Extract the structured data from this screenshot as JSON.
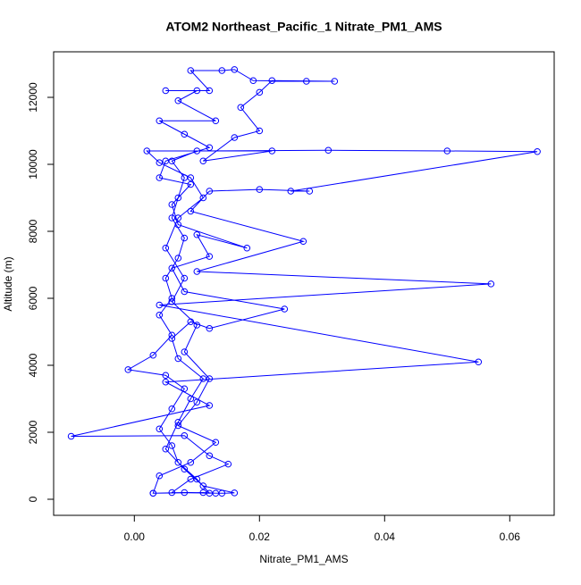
{
  "chart_data": {
    "type": "line",
    "title": "ATOM2 Northeast_Pacific_1 Nitrate_PM1_AMS",
    "x_label": "Nitrate_PM1_AMS",
    "y_label": "Altitude (m)",
    "color": "#0000ff",
    "markers": true,
    "xlim": [
      -0.0129,
      0.0671
    ],
    "ylim": [
      -480,
      13360
    ],
    "xticks": [
      {
        "value": 0,
        "label": "0.00"
      },
      {
        "value": 0.02,
        "label": "0.02"
      },
      {
        "value": 0.04,
        "label": "0.04"
      },
      {
        "value": 0.06,
        "label": "0.06"
      }
    ],
    "yticks": [
      0,
      2000,
      4000,
      6000,
      8000,
      10000,
      12000
    ],
    "x": [
      0.003,
      0.008,
      0.012,
      0.01,
      0.007,
      0.006,
      0.004,
      0.006,
      0.008,
      0.005,
      -0.001,
      0.003,
      0.006,
      0.004,
      0.006,
      0.005,
      0.007,
      0.008,
      0.006,
      0.007,
      0.008,
      0.006,
      0.01,
      0.031,
      0.05,
      0.0644,
      0.025,
      0.028,
      0.02,
      0.012,
      0.009,
      0.027,
      0.01,
      0.057,
      0.004,
      0.055,
      0.005,
      0.012,
      -0.0101,
      0.008,
      0.012,
      0.015,
      0.009,
      0.006,
      0.014,
      0.016,
      0.011,
      0.008,
      0.005,
      0.007,
      0.009,
      0.011,
      0.007,
      0.006,
      0.009,
      0.012,
      0.024,
      0.008,
      0.006,
      0.012,
      0.01,
      0.018,
      0.007,
      0.006,
      0.009,
      0.004,
      0.005,
      0.012,
      0.008,
      0.004,
      0.013,
      0.007,
      0.01,
      0.005,
      0.012,
      0.009,
      0.014,
      0.016,
      0.019,
      0.0275,
      0.032,
      0.022,
      0.02,
      0.017,
      0.02,
      0.016,
      0.011,
      0.022,
      0.002,
      0.004,
      0.009,
      0.011,
      0.007,
      0.005,
      0.008,
      0.006,
      0.01,
      0.008,
      0.012,
      0.01,
      0.007,
      0.013,
      0.009,
      0.004,
      0.003,
      0.011,
      0.013
    ],
    "values": [
      180,
      200,
      180,
      600,
      1100,
      1600,
      2100,
      2700,
      3300,
      3700,
      3870,
      4300,
      4900,
      5500,
      6000,
      6600,
      7200,
      7800,
      8400,
      9000,
      9600,
      10100,
      10400,
      10420,
      10400,
      10380,
      9200,
      9200,
      9250,
      9200,
      8600,
      7700,
      6800,
      6430,
      5800,
      4100,
      3500,
      2800,
      1880,
      1900,
      1300,
      1050,
      600,
      200,
      180,
      190,
      400,
      900,
      1500,
      2300,
      3000,
      3600,
      4200,
      4800,
      5300,
      5100,
      5680,
      6200,
      6900,
      7250,
      7900,
      7500,
      8200,
      8800,
      9400,
      9600,
      10100,
      10500,
      10900,
      11300,
      11300,
      11900,
      12200,
      12200,
      12200,
      12800,
      12800,
      12830,
      12500,
      12480,
      12480,
      12500,
      12150,
      11700,
      11000,
      10800,
      10100,
      10400,
      10400,
      10050,
      9600,
      9000,
      8400,
      7500,
      6600,
      5900,
      5200,
      4400,
      3600,
      2900,
      2200,
      1700,
      1100,
      700,
      180,
      200,
      180
    ]
  }
}
